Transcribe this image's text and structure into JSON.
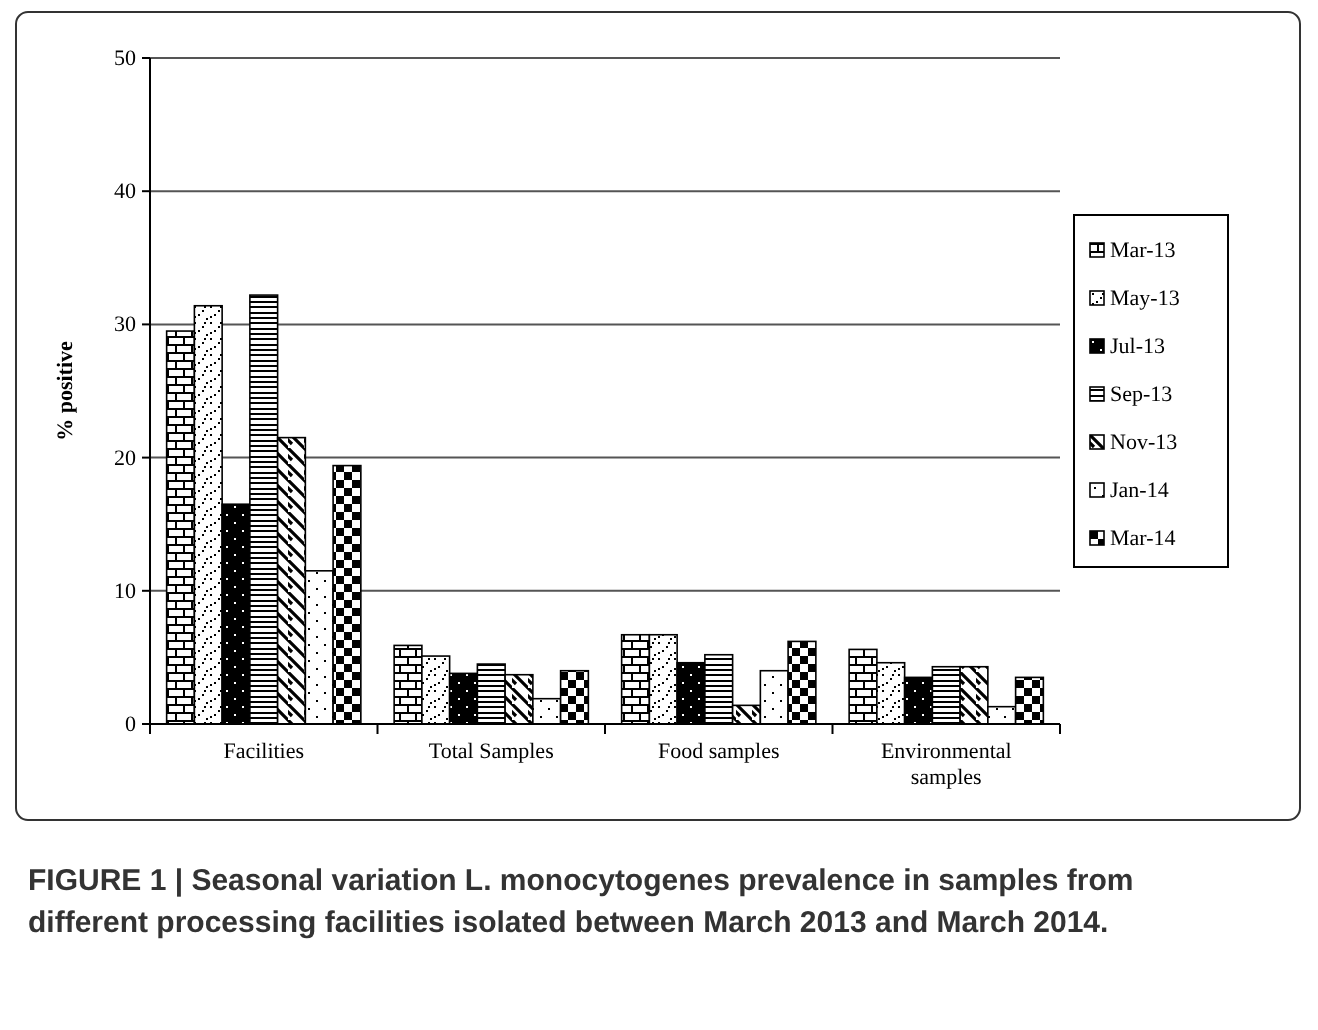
{
  "chart_data": {
    "type": "bar",
    "ylabel": "% positive",
    "categories": [
      "Facilities",
      "Total Samples",
      "Food samples",
      "Environmental samples"
    ],
    "series": [
      {
        "name": "Mar-13",
        "color": "#000000",
        "values": [
          29.5,
          5.9,
          6.7,
          5.6
        ]
      },
      {
        "name": "May-13",
        "color": "#000000",
        "values": [
          31.4,
          5.1,
          6.7,
          4.6
        ]
      },
      {
        "name": "Jul-13",
        "color": "#000000",
        "values": [
          16.5,
          3.8,
          4.6,
          3.5
        ]
      },
      {
        "name": "Sep-13",
        "color": "#000000",
        "values": [
          32.2,
          4.5,
          5.2,
          4.3
        ]
      },
      {
        "name": "Nov-13",
        "color": "#000000",
        "values": [
          21.5,
          3.7,
          1.4,
          4.3
        ]
      },
      {
        "name": "Jan-14",
        "color": "#000000",
        "values": [
          11.5,
          1.9,
          4.0,
          1.3
        ]
      },
      {
        "name": "Mar-14",
        "color": "#000000",
        "values": [
          19.4,
          4.0,
          6.2,
          3.5
        ]
      }
    ],
    "ylim": [
      0,
      50
    ],
    "yticks": [
      0,
      10,
      20,
      30,
      40,
      50
    ],
    "grid": "y",
    "legend": "right",
    "annotations": [
      "FIGURE 1 | Seasonal variation L. monocytogenes prevalence in samples from different processing facilities isolated between March 2013 and March 2014."
    ]
  }
}
